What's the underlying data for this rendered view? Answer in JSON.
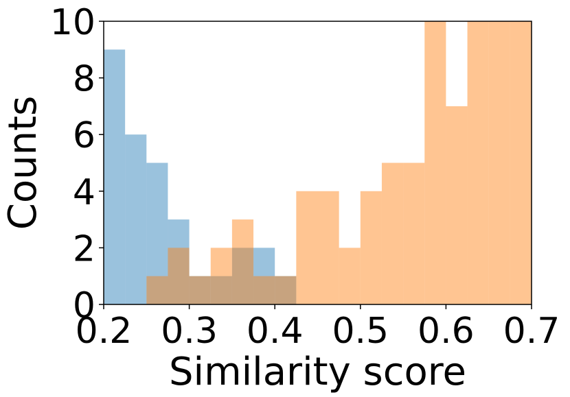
{
  "chart_data": {
    "type": "bar",
    "subtype": "overlapping histogram",
    "xlabel": "Similarity score",
    "ylabel": "Counts",
    "xlim": [
      0.2,
      0.7
    ],
    "ylim": [
      0,
      10
    ],
    "bin_width": 0.025,
    "x_ticks": [
      "0.2",
      "0.3",
      "0.4",
      "0.5",
      "0.6",
      "0.7"
    ],
    "y_ticks": [
      "0",
      "2",
      "4",
      "6",
      "8",
      "10"
    ],
    "bin_starts": [
      0.2,
      0.225,
      0.25,
      0.275,
      0.3,
      0.325,
      0.35,
      0.375,
      0.4,
      0.425,
      0.45,
      0.475,
      0.5,
      0.525,
      0.55,
      0.575,
      0.6,
      0.625,
      0.65,
      0.675
    ],
    "series": [
      {
        "color": "#1f77b4",
        "opacity": 0.45,
        "values": [
          9,
          6,
          5,
          3,
          1,
          1,
          2,
          2,
          1,
          0,
          0,
          0,
          0,
          0,
          0,
          0,
          0,
          0,
          0,
          0
        ]
      },
      {
        "color": "#ff7f0e",
        "opacity": 0.45,
        "values": [
          0,
          0,
          1,
          2,
          1,
          2,
          3,
          1,
          1,
          4,
          4,
          2,
          4,
          5,
          5,
          10,
          7,
          10,
          10,
          10
        ]
      }
    ],
    "grid": false,
    "legend": "none"
  }
}
